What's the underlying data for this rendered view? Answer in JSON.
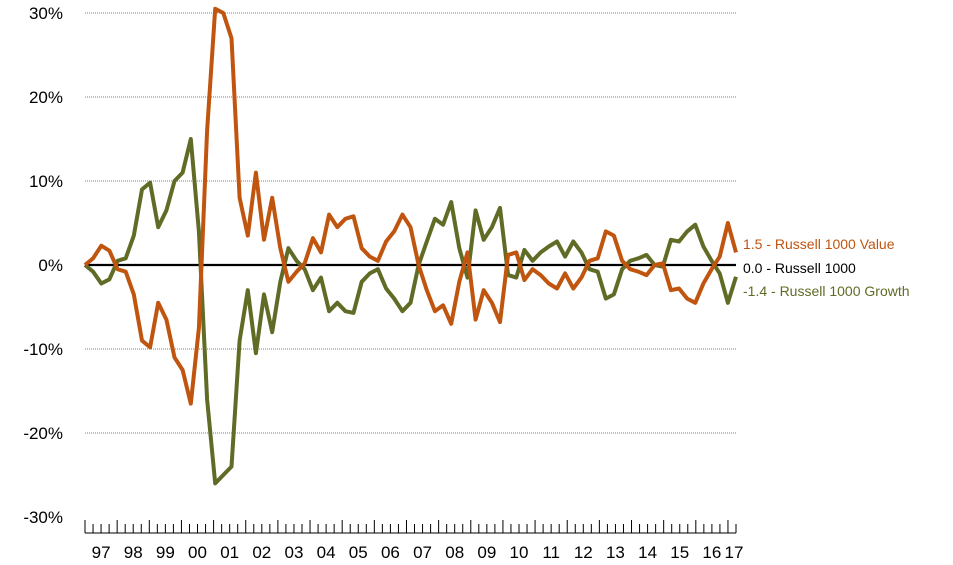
{
  "chart_data": {
    "type": "line",
    "title": "",
    "xlabel": "",
    "ylabel": "",
    "ylim": [
      -30,
      30
    ],
    "y_ticks": [
      30,
      20,
      10,
      0,
      -10,
      -20,
      -30
    ],
    "y_tick_labels": [
      "30%",
      "20%",
      "10%",
      "0%",
      "-10%",
      "-20%",
      "-30%"
    ],
    "x_start_year": 1997,
    "x_end_year": 2017.25,
    "x_tick_labels": [
      "97",
      "98",
      "99",
      "00",
      "01",
      "02",
      "03",
      "04",
      "05",
      "06",
      "07",
      "08",
      "09",
      "10",
      "11",
      "12",
      "13",
      "14",
      "15",
      "16",
      "17"
    ],
    "grid": "horizontal dotted",
    "series": [
      {
        "name": "Russell 1000 Value",
        "end_label": "1.5 - Russell 1000 Value",
        "color": "#c0550f",
        "values": [
          0,
          0.8,
          2.3,
          1.7,
          -0.5,
          -0.8,
          -3.5,
          -9.0,
          -9.8,
          -4.5,
          -6.5,
          -11.0,
          -12.5,
          -16.5,
          -7.5,
          16.0,
          30.5,
          30.0,
          27.0,
          8.0,
          3.5,
          11.0,
          3.0,
          8.0,
          2.0,
          -2.0,
          -0.8,
          0.2,
          3.2,
          1.5,
          6.0,
          4.5,
          5.5,
          5.8,
          2.0,
          1.0,
          0.5,
          2.8,
          4.0,
          6.0,
          4.5,
          0.0,
          -3.0,
          -5.5,
          -4.8,
          -7.0,
          -2.0,
          1.5,
          -6.5,
          -3.0,
          -4.5,
          -6.8,
          1.2,
          1.5,
          -1.8,
          -0.5,
          -1.2,
          -2.2,
          -2.8,
          -1.0,
          -2.8,
          -1.5,
          0.5,
          0.8,
          4.0,
          3.5,
          0.5,
          -0.5,
          -0.8,
          -1.2,
          0.0,
          0.2,
          -3.0,
          -2.8,
          -4.0,
          -4.5,
          -2.2,
          -0.5,
          1.0,
          5.0,
          1.5
        ]
      },
      {
        "name": "Russell 1000",
        "end_label": "0.0 - Russell 1000",
        "color": "#000000",
        "values": [
          0,
          0
        ]
      },
      {
        "name": "Russell 1000 Growth",
        "end_label": "-1.4 - Russell 1000 Growth",
        "color": "#606b26",
        "values": [
          0,
          -0.8,
          -2.2,
          -1.7,
          0.5,
          0.8,
          3.5,
          9.0,
          9.8,
          4.5,
          6.5,
          10.0,
          11.0,
          15.0,
          4.0,
          -16.0,
          -26.0,
          -25.0,
          -24.0,
          -9.0,
          -3.0,
          -10.5,
          -3.5,
          -8.0,
          -2.0,
          2.0,
          0.5,
          -0.5,
          -3.0,
          -1.5,
          -5.5,
          -4.5,
          -5.5,
          -5.7,
          -2.0,
          -1.0,
          -0.5,
          -2.8,
          -4.0,
          -5.5,
          -4.5,
          0.0,
          2.8,
          5.5,
          4.8,
          7.5,
          2.0,
          -1.5,
          6.5,
          3.0,
          4.5,
          6.8,
          -1.2,
          -1.5,
          1.8,
          0.5,
          1.5,
          2.2,
          2.8,
          1.0,
          2.8,
          1.5,
          -0.5,
          -0.8,
          -4.0,
          -3.5,
          -0.5,
          0.5,
          0.8,
          1.2,
          0.0,
          -0.2,
          3.0,
          2.8,
          4.0,
          4.8,
          2.2,
          0.5,
          -1.0,
          -4.5,
          -1.4
        ]
      }
    ]
  }
}
